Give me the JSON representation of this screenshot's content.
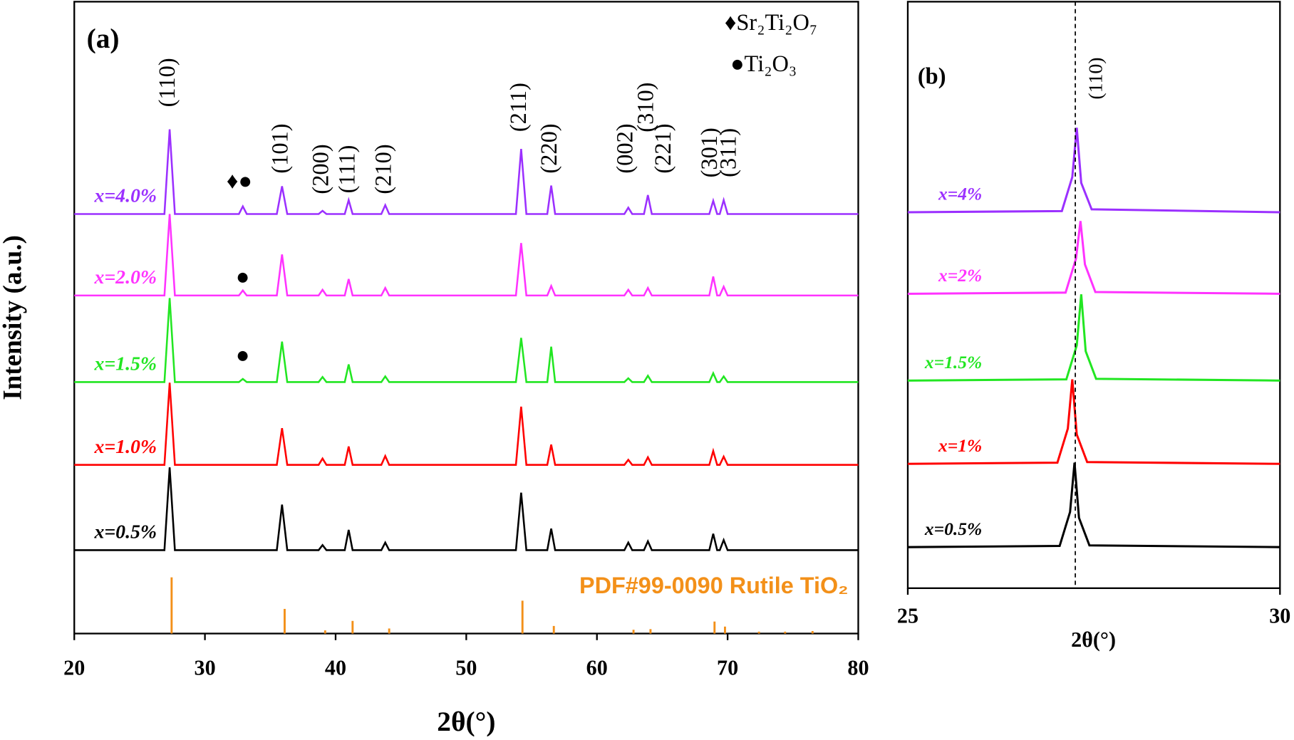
{
  "chart_data": [
    {
      "type": "line",
      "title": "(a)",
      "xlabel": "2θ(°)",
      "ylabel": "Intensity (a.u.)",
      "xlim": [
        20,
        80
      ],
      "xticks": [
        20,
        30,
        40,
        50,
        60,
        70,
        80
      ],
      "ylim": [
        0,
        100
      ],
      "x": [
        20,
        26.9,
        27.3,
        27.7,
        32.6,
        32.9,
        33.2,
        35.5,
        35.9,
        36.3,
        38.7,
        39.0,
        39.3,
        40.7,
        41.0,
        41.3,
        43.5,
        43.8,
        44.1,
        53.8,
        54.2,
        54.6,
        56.2,
        56.5,
        56.8,
        62.1,
        62.4,
        62.7,
        63.6,
        63.9,
        64.2,
        68.6,
        68.9,
        69.2,
        69.4,
        69.7,
        70.0,
        80
      ],
      "series": [
        {
          "name": "x=0.5%",
          "color": "#000000",
          "values": [
            13.2,
            13.2,
            26.3,
            13.2,
            13.2,
            13.2,
            13.2,
            13.2,
            20.4,
            13.2,
            13.2,
            14.0,
            13.2,
            13.2,
            16.4,
            13.2,
            13.2,
            14.4,
            13.2,
            13.2,
            22.3,
            13.2,
            13.2,
            16.6,
            13.2,
            13.2,
            14.4,
            13.2,
            13.2,
            14.6,
            13.2,
            13.2,
            15.8,
            13.2,
            13.2,
            14.8,
            13.2,
            13.2
          ]
        },
        {
          "name": "x=1.0%",
          "color": "#ff0000",
          "values": [
            26.7,
            26.7,
            39.7,
            26.7,
            26.7,
            26.7,
            26.7,
            26.7,
            32.5,
            26.7,
            26.7,
            27.7,
            26.7,
            26.7,
            29.6,
            26.7,
            26.7,
            28.1,
            26.7,
            26.7,
            35.9,
            26.7,
            26.7,
            29.9,
            26.7,
            26.7,
            27.5,
            26.7,
            26.7,
            27.9,
            26.7,
            26.7,
            28.9,
            26.7,
            26.7,
            28.0,
            26.7,
            26.7
          ]
        },
        {
          "name": "x=1.5%",
          "color": "#22e622",
          "values": [
            39.8,
            39.8,
            53.1,
            39.8,
            39.8,
            40.3,
            39.8,
            39.8,
            46.2,
            39.8,
            39.8,
            40.6,
            39.8,
            39.8,
            42.6,
            39.8,
            39.8,
            40.7,
            39.8,
            39.8,
            46.8,
            39.8,
            39.8,
            45.4,
            39.8,
            39.8,
            40.4,
            39.8,
            39.8,
            40.8,
            39.8,
            39.8,
            41.2,
            39.8,
            39.8,
            40.7,
            39.8,
            39.8
          ]
        },
        {
          "name": "x=2.0%",
          "color": "#ff33ff",
          "values": [
            53.5,
            53.5,
            66.4,
            53.5,
            53.5,
            54.3,
            53.5,
            53.5,
            60.0,
            53.5,
            53.5,
            54.4,
            53.5,
            53.5,
            56.1,
            53.5,
            53.5,
            54.7,
            53.5,
            53.5,
            61.8,
            53.5,
            53.5,
            55.0,
            53.5,
            53.5,
            54.4,
            53.5,
            53.5,
            54.7,
            53.5,
            53.5,
            56.5,
            53.5,
            53.5,
            54.9,
            53.5,
            53.5
          ]
        },
        {
          "name": "x=4.0%",
          "color": "#9b30ff",
          "values": [
            66.4,
            66.4,
            79.8,
            66.4,
            66.4,
            67.6,
            66.4,
            66.4,
            70.8,
            66.4,
            66.4,
            66.9,
            66.4,
            66.4,
            68.6,
            66.4,
            66.4,
            67.8,
            66.4,
            66.4,
            76.7,
            66.4,
            66.4,
            70.9,
            66.4,
            66.4,
            67.4,
            66.4,
            66.4,
            69.4,
            66.4,
            66.4,
            68.5,
            66.4,
            66.4,
            68.6,
            66.4,
            66.4
          ]
        }
      ],
      "reference": {
        "name": "PDF#99-0090 Rutile TiO₂",
        "color": "#f39019",
        "x": [
          27.45,
          36.1,
          39.2,
          41.3,
          44.1,
          54.3,
          56.7,
          62.8,
          64.1,
          69.0,
          69.8,
          72.4,
          74.4,
          76.5
        ],
        "values": [
          8.9,
          3.9,
          0.5,
          2.0,
          0.8,
          5.2,
          1.2,
          0.6,
          0.7,
          1.9,
          1.1,
          0.3,
          0.3,
          0.4
        ]
      },
      "annotations": [
        "(110)",
        "(101)",
        "(200)",
        "(111)",
        "(210)",
        "(211)",
        "(220)",
        "(002)",
        "(310)",
        "(221)",
        "(301)",
        "(311)"
      ],
      "markers": [
        "♦●",
        "●",
        "●"
      ],
      "phase_legend": [
        "♦Sr₂Ti₂O₇",
        "●Ti₂O₃"
      ]
    },
    {
      "type": "line",
      "title": "(b)",
      "xlabel": "2θ(°)",
      "annotation": "(110)",
      "xlim": [
        25,
        30
      ],
      "xticks": [
        25,
        30
      ],
      "ylim": [
        0,
        100
      ],
      "series": [
        {
          "name": "x=0.5%",
          "color": "#000000",
          "x": [
            25,
            27.04,
            27.18,
            27.24,
            27.3,
            27.44,
            30
          ],
          "values": [
            7.0,
            7.2,
            13.0,
            21.4,
            12.0,
            7.3,
            7.0
          ]
        },
        {
          "name": "x=1%",
          "color": "#ff0000",
          "x": [
            25,
            27.01,
            27.15,
            27.21,
            27.27,
            27.41,
            30
          ],
          "values": [
            21.2,
            21.4,
            27.2,
            35.6,
            26.2,
            21.5,
            21.2
          ]
        },
        {
          "name": "x=1.5%",
          "color": "#22e622",
          "x": [
            25,
            27.13,
            27.27,
            27.33,
            27.39,
            27.53,
            30
          ],
          "values": [
            35.4,
            35.6,
            41.4,
            50.1,
            40.4,
            35.7,
            35.4
          ]
        },
        {
          "name": "x=2%",
          "color": "#ff33ff",
          "x": [
            25,
            27.12,
            27.26,
            27.32,
            27.38,
            27.52,
            30
          ],
          "values": [
            50.2,
            50.4,
            56.2,
            62.6,
            55.2,
            50.5,
            50.2
          ]
        },
        {
          "name": "x=4%",
          "color": "#9b30ff",
          "x": [
            25,
            27.07,
            27.21,
            27.27,
            27.33,
            27.47,
            30
          ],
          "values": [
            64.1,
            64.3,
            70.1,
            78.5,
            69.1,
            64.6,
            64.1
          ]
        }
      ]
    }
  ]
}
